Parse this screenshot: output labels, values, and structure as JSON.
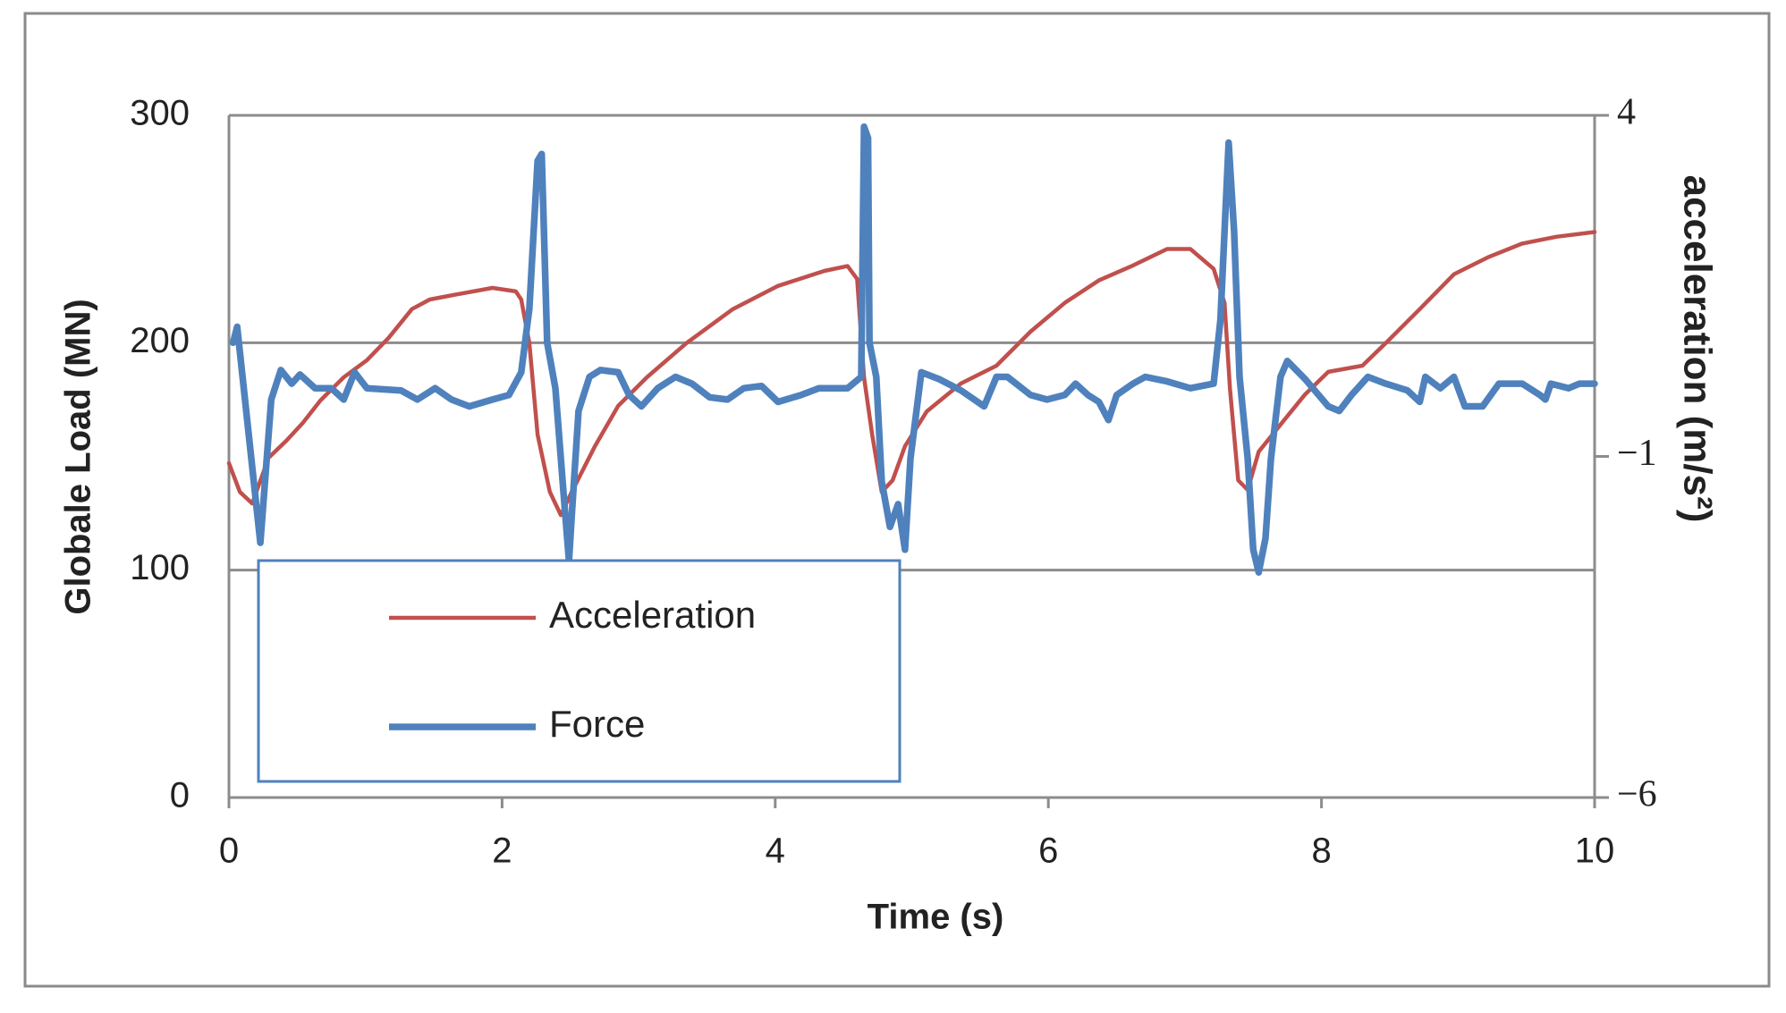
{
  "chart_data": {
    "type": "line",
    "xlabel": "Time (s)",
    "ylabel": "Globale Load (MN)",
    "y2label": "acceleration (m/s²)",
    "xlim": [
      0,
      10
    ],
    "xticks": [
      0,
      2,
      4,
      6,
      8,
      10
    ],
    "ylim": [
      0,
      300
    ],
    "yticks": [
      0,
      100,
      200,
      300
    ],
    "y2lim": [
      -6,
      4
    ],
    "y2ticks": [
      {
        "value": 4,
        "label": "4"
      },
      {
        "value": -1,
        "label": "−1"
      },
      {
        "value": -6,
        "label": "−6"
      }
    ],
    "grid": true,
    "legend": "lower left",
    "series": [
      {
        "name": "Acceleration",
        "color": "#c0504d",
        "axis": "y2",
        "x": [
          0,
          0.08,
          0.17,
          0.29,
          0.42,
          0.54,
          0.67,
          0.84,
          1.01,
          1.17,
          1.34,
          1.47,
          1.68,
          1.93,
          2.1,
          2.14,
          2.2,
          2.26,
          2.35,
          2.43,
          2.51,
          2.68,
          2.85,
          3.06,
          3.35,
          3.69,
          4.02,
          4.36,
          4.53,
          4.6,
          4.65,
          4.71,
          4.78,
          4.86,
          4.95,
          5.11,
          5.36,
          5.62,
          5.87,
          6.12,
          6.37,
          6.62,
          6.87,
          7.04,
          7.21,
          7.29,
          7.33,
          7.39,
          7.46,
          7.54,
          7.71,
          7.88,
          8.05,
          8.3,
          8.47,
          8.72,
          8.97,
          9.22,
          9.47,
          9.72,
          10
        ],
        "values": [
          -1.1,
          -1.52,
          -1.69,
          -1.02,
          -0.77,
          -0.51,
          -0.18,
          0.16,
          0.41,
          0.74,
          1.16,
          1.3,
          1.38,
          1.47,
          1.42,
          1.3,
          0.66,
          -0.68,
          -1.52,
          -1.86,
          -1.52,
          -0.85,
          -0.26,
          0.16,
          0.66,
          1.16,
          1.5,
          1.72,
          1.79,
          1.6,
          0.16,
          -0.68,
          -1.52,
          -1.35,
          -0.85,
          -0.34,
          0.07,
          0.33,
          0.83,
          1.25,
          1.58,
          1.8,
          2.04,
          2.04,
          1.75,
          1.25,
          -0.01,
          -1.35,
          -1.49,
          -0.93,
          -0.51,
          -0.09,
          0.24,
          0.33,
          0.66,
          1.16,
          1.67,
          1.92,
          2.12,
          2.22,
          2.29
        ]
      },
      {
        "name": "Force",
        "color": "#4f81bd",
        "axis": "y",
        "x": [
          0.03,
          0.06,
          0.23,
          0.31,
          0.38,
          0.46,
          0.52,
          0.63,
          0.75,
          0.84,
          0.92,
          1.01,
          1.26,
          1.38,
          1.51,
          1.63,
          1.76,
          1.93,
          2.05,
          2.14,
          2.2,
          2.26,
          2.29,
          2.33,
          2.39,
          2.45,
          2.49,
          2.51,
          2.56,
          2.64,
          2.72,
          2.85,
          2.93,
          3.02,
          3.14,
          3.27,
          3.39,
          3.52,
          3.65,
          3.77,
          3.9,
          4.02,
          4.19,
          4.32,
          4.53,
          4.63,
          4.65,
          4.68,
          4.69,
          4.74,
          4.78,
          4.84,
          4.9,
          4.95,
          4.99,
          5.07,
          5.2,
          5.36,
          5.53,
          5.62,
          5.7,
          5.87,
          5.99,
          6.12,
          6.2,
          6.29,
          6.37,
          6.44,
          6.5,
          6.62,
          6.71,
          6.87,
          7.04,
          7.21,
          7.26,
          7.32,
          7.36,
          7.4,
          7.46,
          7.5,
          7.54,
          7.59,
          7.63,
          7.7,
          7.75,
          7.88,
          8.05,
          8.13,
          8.22,
          8.34,
          8.47,
          8.63,
          8.72,
          8.76,
          8.87,
          8.97,
          9.05,
          9.18,
          9.3,
          9.47,
          9.6,
          9.64,
          9.68,
          9.81,
          9.89,
          10
        ],
        "values": [
          200,
          207,
          112,
          175,
          188,
          182,
          186,
          180,
          180,
          175,
          187,
          180,
          179,
          175,
          180,
          175,
          172,
          175,
          177,
          187,
          215,
          280,
          283,
          200,
          180,
          134,
          104,
          124,
          170,
          185,
          188,
          187,
          177,
          172,
          180,
          185,
          182,
          176,
          175,
          180,
          181,
          174,
          177,
          180,
          180,
          185,
          295,
          290,
          200,
          185,
          139,
          119,
          129,
          109,
          149,
          187,
          184,
          179,
          172,
          185,
          185,
          177,
          175,
          177,
          182,
          177,
          174,
          166,
          177,
          182,
          185,
          183,
          180,
          182,
          210,
          288,
          249,
          185,
          149,
          109,
          99,
          114,
          149,
          185,
          192,
          184,
          172,
          170,
          177,
          185,
          182,
          179,
          174,
          185,
          180,
          185,
          172,
          172,
          182,
          182,
          177,
          175,
          182,
          180,
          182,
          182
        ]
      }
    ]
  }
}
